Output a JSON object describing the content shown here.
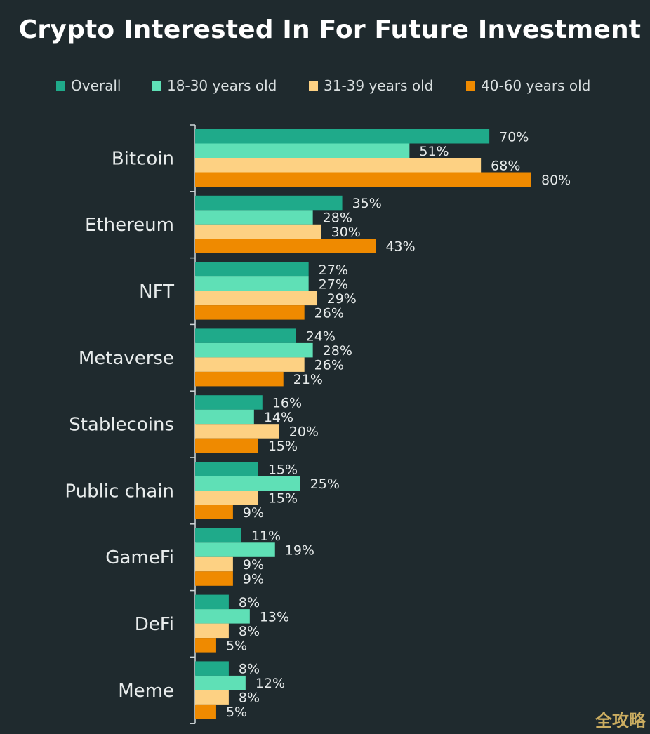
{
  "chart_data": {
    "type": "bar",
    "orientation": "horizontal",
    "title": "Crypto Interested In For Future Investment",
    "xlabel": "",
    "ylabel": "",
    "value_suffix": "%",
    "xlim": [
      0,
      80
    ],
    "categories": [
      "Bitcoin",
      "Ethereum",
      "NFT",
      "Metaverse",
      "Stablecoins",
      "Public chain",
      "GameFi",
      "DeFi",
      "Meme"
    ],
    "series": [
      {
        "name": "Overall",
        "color": "#1faa8a",
        "values": [
          70,
          35,
          27,
          24,
          16,
          15,
          11,
          8,
          8
        ]
      },
      {
        "name": "18-30 years old",
        "color": "#5fe0b6",
        "values": [
          51,
          28,
          27,
          28,
          14,
          25,
          19,
          13,
          12
        ]
      },
      {
        "name": "31-39 years old",
        "color": "#fdd183",
        "values": [
          68,
          30,
          29,
          26,
          20,
          15,
          9,
          8,
          8
        ]
      },
      {
        "name": "40-60 years old",
        "color": "#ef8a00",
        "values": [
          80,
          43,
          26,
          21,
          15,
          9,
          9,
          5,
          5
        ]
      }
    ],
    "legend_position": "top",
    "grid": false
  },
  "watermark": "全攻略",
  "colors": {
    "background": "#1f2a2e",
    "axis": "#cfd6d8",
    "text": "#e8ecec"
  }
}
